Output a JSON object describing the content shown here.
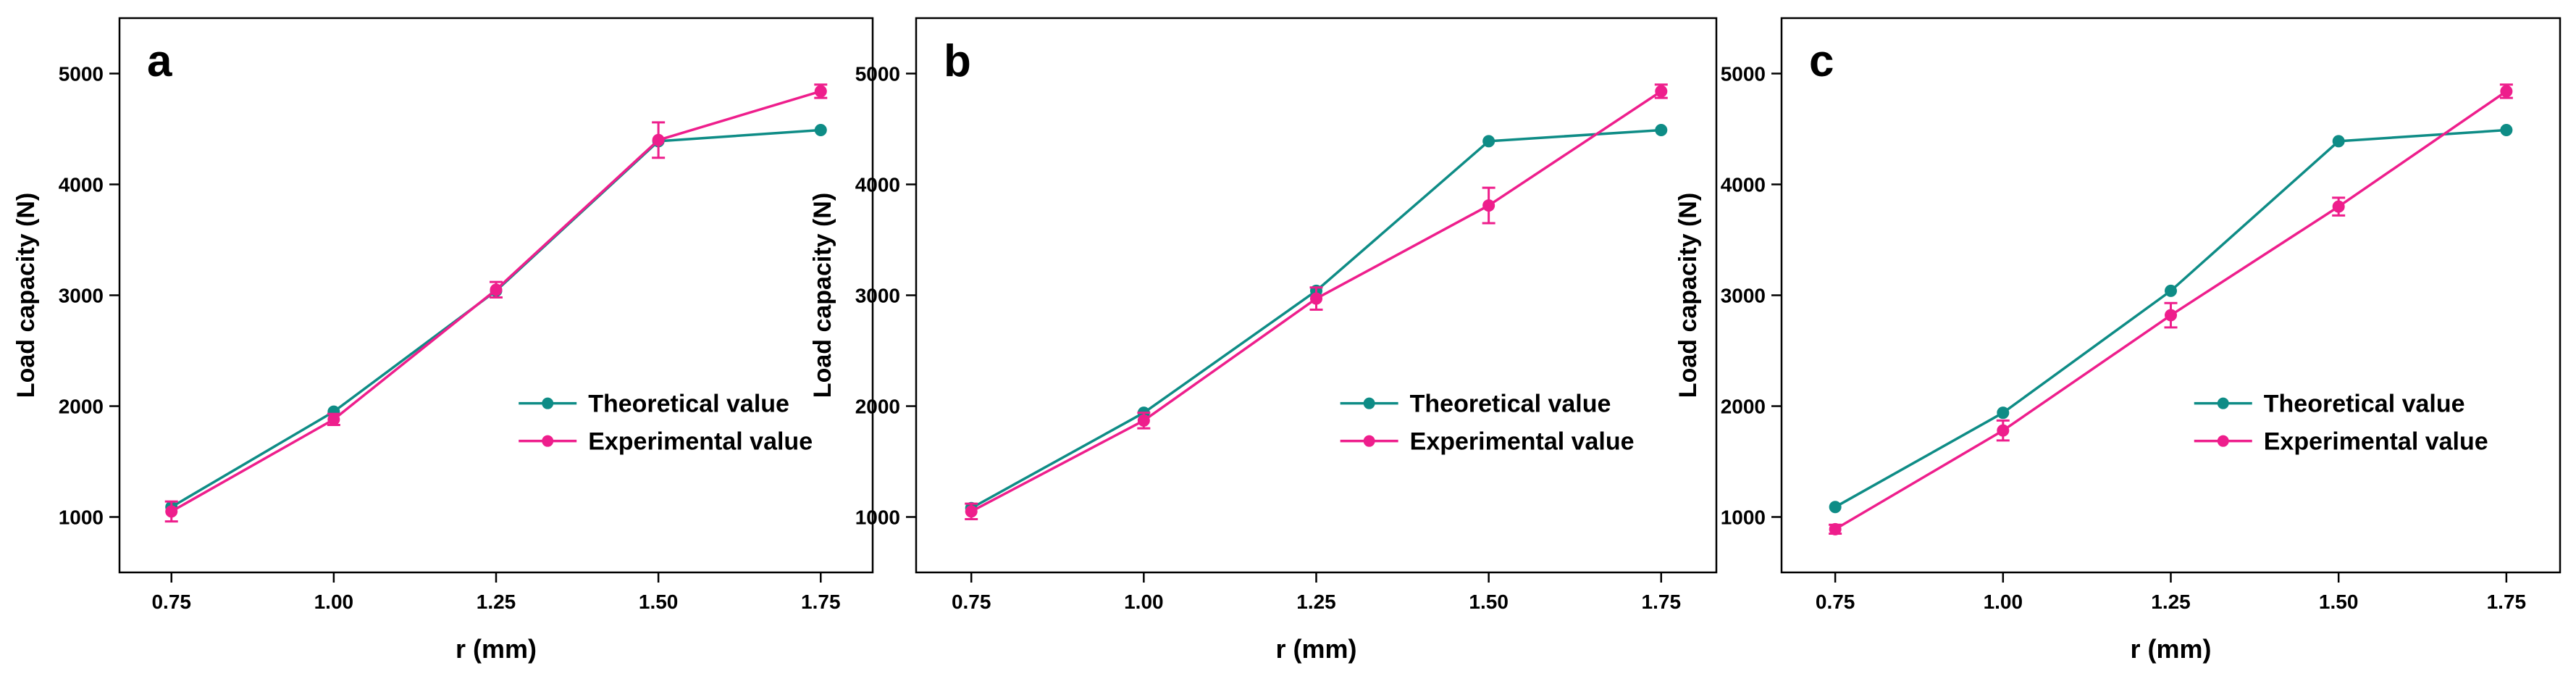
{
  "colors": {
    "theoretical": "#0E8C86",
    "experimental": "#EE1E8C",
    "axis": "#000000"
  },
  "chart_data": [
    {
      "type": "line",
      "panel_label": "a",
      "xlabel": "r (mm)",
      "ylabel": "Load capacity (N)",
      "x": [
        0.75,
        1.0,
        1.25,
        1.5,
        1.75
      ],
      "xticks": [
        "0.75",
        "1.00",
        "1.25",
        "1.50",
        "1.75"
      ],
      "yticks": [
        "1000",
        "2000",
        "3000",
        "4000",
        "5000"
      ],
      "ylim": [
        500,
        5500
      ],
      "legend_position": "lower-right",
      "grid": false,
      "series": [
        {
          "name": "Theoretical value",
          "values": [
            1090,
            1950,
            3040,
            4390,
            4490
          ],
          "errors": [
            0,
            0,
            0,
            0,
            0
          ]
        },
        {
          "name": "Experimental value",
          "values": [
            1050,
            1880,
            3050,
            4400,
            4840
          ],
          "errors": [
            90,
            50,
            70,
            160,
            60
          ]
        }
      ]
    },
    {
      "type": "line",
      "panel_label": "b",
      "xlabel": "r (mm)",
      "ylabel": "Load capacity (N)",
      "x": [
        0.75,
        1.0,
        1.25,
        1.5,
        1.75
      ],
      "xticks": [
        "0.75",
        "1.00",
        "1.25",
        "1.50",
        "1.75"
      ],
      "yticks": [
        "1000",
        "2000",
        "3000",
        "4000",
        "5000"
      ],
      "ylim": [
        500,
        5500
      ],
      "legend_position": "lower-right",
      "grid": false,
      "series": [
        {
          "name": "Theoretical value",
          "values": [
            1080,
            1940,
            3040,
            4390,
            4490
          ],
          "errors": [
            0,
            0,
            0,
            0,
            0
          ]
        },
        {
          "name": "Experimental value",
          "values": [
            1050,
            1870,
            2970,
            3810,
            4840
          ],
          "errors": [
            70,
            70,
            100,
            160,
            60
          ]
        }
      ]
    },
    {
      "type": "line",
      "panel_label": "c",
      "xlabel": "r (mm)",
      "ylabel": "Load capacity (N)",
      "x": [
        0.75,
        1.0,
        1.25,
        1.5,
        1.75
      ],
      "xticks": [
        "0.75",
        "1.00",
        "1.25",
        "1.50",
        "1.75"
      ],
      "yticks": [
        "1000",
        "2000",
        "3000",
        "4000",
        "5000"
      ],
      "ylim": [
        500,
        5500
      ],
      "legend_position": "lower-right",
      "grid": false,
      "series": [
        {
          "name": "Theoretical value",
          "values": [
            1090,
            1940,
            3040,
            4390,
            4490
          ],
          "errors": [
            0,
            0,
            0,
            0,
            0
          ]
        },
        {
          "name": "Experimental value",
          "values": [
            890,
            1780,
            2820,
            3800,
            4840
          ],
          "errors": [
            40,
            90,
            110,
            80,
            60
          ]
        }
      ]
    }
  ]
}
